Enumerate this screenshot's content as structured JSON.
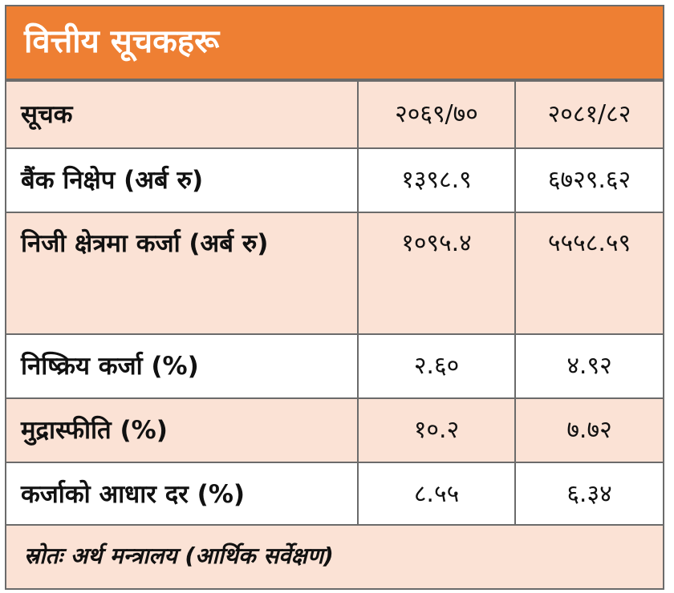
{
  "title": "वित्तीय सूचकहरू",
  "table": {
    "header": {
      "label": "सूचक",
      "col1": "२०६९/७०",
      "col2": "२०८१/८२"
    },
    "rows": [
      {
        "label": "बैंक निक्षेप (अर्ब रु)",
        "v1": "१३९८.९",
        "v2": "६७२९.६२"
      },
      {
        "label": "निजी क्षेत्रमा कर्जा (अर्ब रु)",
        "v1": "१०९५.४",
        "v2": "५५५८.५९"
      },
      {
        "label": "निष्क्रिय कर्जा (%)",
        "v1": "२.६०",
        "v2": "४.९२"
      },
      {
        "label": "मुद्रास्फीति (%)",
        "v1": "१०.२",
        "v2": "७.७२"
      },
      {
        "label": "कर्जाको आधार दर (%)",
        "v1": "८.५५",
        "v2": "६.३४"
      }
    ]
  },
  "source": "स्रोतः अर्थ मन्त्रालय (आर्थिक सर्वेक्षण)",
  "colors": {
    "title_bg": "#ee7f33",
    "row_alt_bg": "#fbe2d5",
    "border": "#6b6b6b"
  }
}
